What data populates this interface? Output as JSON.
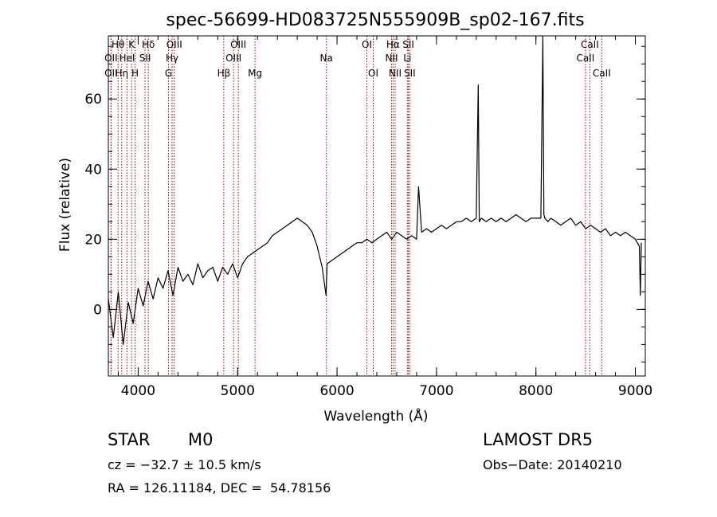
{
  "chart_data": {
    "type": "line",
    "title": "spec-56699-HD083725N555909B_sp02-167.fits",
    "xlabel": "Wavelength (Å)",
    "ylabel": "Flux (relative)",
    "xlim": [
      3700,
      9100
    ],
    "ylim": [
      -19,
      78
    ],
    "x_ticks": [
      4000,
      5000,
      6000,
      7000,
      8000,
      9000
    ],
    "y_ticks": [
      0,
      20,
      40,
      60
    ],
    "x_minor_step": 200,
    "y_minor_step": 5,
    "grid": false,
    "series": [
      {
        "color": "#000000",
        "x": [
          3700,
          3750,
          3800,
          3850,
          3900,
          3950,
          4000,
          4050,
          4100,
          4150,
          4200,
          4250,
          4300,
          4350,
          4400,
          4450,
          4500,
          4550,
          4600,
          4650,
          4700,
          4750,
          4800,
          4850,
          4900,
          4950,
          5000,
          5050,
          5100,
          5150,
          5200,
          5250,
          5300,
          5350,
          5400,
          5450,
          5500,
          5550,
          5600,
          5650,
          5700,
          5750,
          5800,
          5850,
          5890,
          5900,
          5950,
          6000,
          6050,
          6100,
          6150,
          6200,
          6250,
          6300,
          6350,
          6400,
          6450,
          6500,
          6550,
          6600,
          6650,
          6700,
          6750,
          6800,
          6820,
          6850,
          6900,
          6950,
          7000,
          7050,
          7100,
          7150,
          7200,
          7250,
          7300,
          7350,
          7400,
          7420,
          7430,
          7450,
          7500,
          7550,
          7600,
          7650,
          7700,
          7750,
          7800,
          7850,
          7900,
          7950,
          8000,
          8050,
          8070,
          8080,
          8090,
          8120,
          8150,
          8200,
          8250,
          8300,
          8350,
          8400,
          8450,
          8500,
          8550,
          8600,
          8650,
          8700,
          8750,
          8800,
          8850,
          8900,
          8950,
          9000,
          9040,
          9050,
          9060
        ],
        "y": [
          3,
          -8,
          5,
          -10,
          2,
          -4,
          6,
          1,
          8,
          3,
          9,
          6,
          11,
          4,
          12,
          8,
          10,
          7,
          13,
          9,
          11,
          12,
          8,
          12,
          10,
          13,
          9,
          13,
          15,
          16,
          17,
          18,
          19,
          21,
          22,
          23,
          24,
          25,
          26,
          25,
          24,
          22,
          18,
          12,
          4,
          13,
          14,
          15,
          16,
          17,
          18,
          19,
          19,
          20,
          19,
          20,
          21,
          22,
          20,
          22,
          21,
          20,
          21,
          20,
          35,
          22,
          23,
          22,
          23,
          24,
          23,
          24,
          25,
          25,
          26,
          25,
          26,
          64,
          25,
          26,
          25,
          26,
          25,
          26,
          25,
          26,
          27,
          26,
          25,
          26,
          26,
          26,
          78,
          27,
          26,
          25,
          26,
          25,
          24,
          25,
          26,
          24,
          25,
          23,
          24,
          23,
          22,
          23,
          21,
          22,
          21,
          22,
          21,
          20,
          18,
          4,
          19
        ]
      }
    ],
    "spectral_lines": [
      {
        "name": "Hθ",
        "x": 3798,
        "row": 0
      },
      {
        "name": "OII",
        "x": 3727,
        "row": 1
      },
      {
        "name": "OII",
        "x": 3727,
        "row": 2
      },
      {
        "name": "Hη",
        "x": 3835,
        "row": 2
      },
      {
        "name": "HeI",
        "x": 3888,
        "row": 1
      },
      {
        "name": "K",
        "x": 3934,
        "row": 0
      },
      {
        "name": "H",
        "x": 3969,
        "row": 2
      },
      {
        "name": "Hδ",
        "x": 4102,
        "row": 0
      },
      {
        "name": "SII",
        "x": 4069,
        "row": 1
      },
      {
        "name": "OIII",
        "x": 4363,
        "row": 0
      },
      {
        "name": "Hγ",
        "x": 4341,
        "row": 1
      },
      {
        "name": "G",
        "x": 4305,
        "row": 2
      },
      {
        "name": "Hβ",
        "x": 4861,
        "row": 2
      },
      {
        "name": "OIII",
        "x": 5007,
        "row": 0
      },
      {
        "name": "OIII",
        "x": 4959,
        "row": 1
      },
      {
        "name": "Mg",
        "x": 5175,
        "row": 2
      },
      {
        "name": "Na",
        "x": 5893,
        "row": 1
      },
      {
        "name": "OI",
        "x": 6300,
        "row": 0
      },
      {
        "name": "OI",
        "x": 6364,
        "row": 2
      },
      {
        "name": "Hα",
        "x": 6563,
        "row": 0
      },
      {
        "name": "NII",
        "x": 6548,
        "row": 1
      },
      {
        "name": "NII",
        "x": 6584,
        "row": 2
      },
      {
        "name": "SII",
        "x": 6717,
        "row": 0
      },
      {
        "name": "Li",
        "x": 6707,
        "row": 1
      },
      {
        "name": "SII",
        "x": 6731,
        "row": 2
      },
      {
        "name": "CaII",
        "x": 8542,
        "row": 0
      },
      {
        "name": "CaII",
        "x": 8498,
        "row": 1
      },
      {
        "name": "CaII",
        "x": 8662,
        "row": 2
      }
    ],
    "line_marker_color": "#a00000"
  },
  "info": {
    "object_class": "STAR",
    "subclass": "M0",
    "survey": "LAMOST DR5",
    "cz": "cz = −32.7 ± 10.5 km/s",
    "obs_date": "Obs−Date: 20140210",
    "coords": "RA = 126.11184, DEC =  54.78156"
  }
}
